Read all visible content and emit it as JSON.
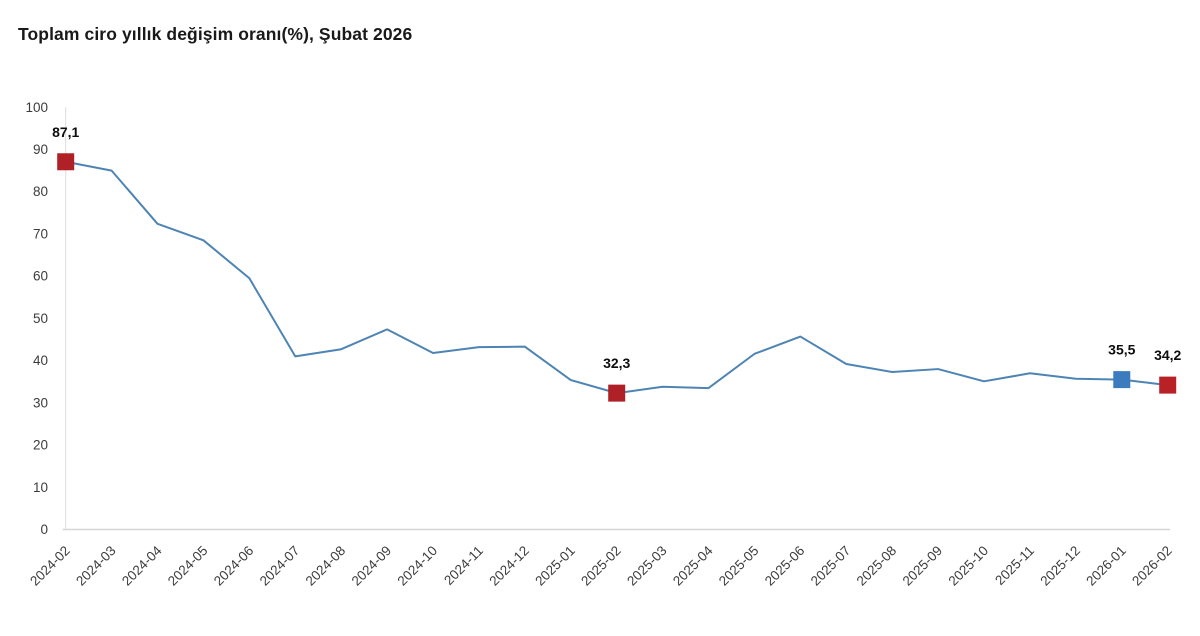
{
  "title": "Toplam ciro yıllık değişim oranı(%), Şubat 2026",
  "chart_data": {
    "type": "line",
    "title": "Toplam ciro yıllık değişim oranı(%), Şubat 2026",
    "xlabel": "",
    "ylabel": "",
    "ylim": [
      0,
      100
    ],
    "yticks": [
      0,
      10,
      20,
      30,
      40,
      50,
      60,
      70,
      80,
      90,
      100
    ],
    "grid": "single vertical gridline at first category only",
    "legend": "none",
    "x": [
      "2024-02",
      "2024-03",
      "2024-04",
      "2024-05",
      "2024-06",
      "2024-07",
      "2024-08",
      "2024-09",
      "2024-10",
      "2024-11",
      "2024-12",
      "2025-01",
      "2025-02",
      "2025-03",
      "2025-04",
      "2025-05",
      "2025-06",
      "2025-07",
      "2025-08",
      "2025-09",
      "2025-10",
      "2025-11",
      "2025-12",
      "2026-01",
      "2026-02"
    ],
    "series": [
      {
        "name": "Toplam ciro yıllık değişim oranı (%)",
        "values": [
          87.1,
          85.0,
          72.4,
          68.5,
          59.5,
          41.0,
          42.7,
          47.4,
          41.8,
          43.2,
          43.3,
          35.4,
          32.3,
          33.8,
          33.5,
          41.6,
          45.7,
          39.2,
          37.3,
          38.0,
          35.1,
          37.0,
          35.7,
          35.5,
          34.2
        ]
      }
    ],
    "annotations": [
      {
        "x": "2024-02",
        "value": 87.1,
        "label": "87,1",
        "marker": "square",
        "marker_color": "#b02127"
      },
      {
        "x": "2025-02",
        "value": 32.3,
        "label": "32,3",
        "marker": "square",
        "marker_color": "#b02127"
      },
      {
        "x": "2026-01",
        "value": 35.5,
        "label": "35,5",
        "marker": "square",
        "marker_color": "#3a7cbe"
      },
      {
        "x": "2026-02",
        "value": 34.2,
        "label": "34,2",
        "marker": "square",
        "marker_color": "#b82126"
      }
    ],
    "colors": {
      "line": "#4e84b3",
      "axis_line": "#d6d6d6",
      "gridline": "#dedede",
      "tick_label": "#3d3d3d",
      "data_label": "#0d0d0d",
      "title": "#191919",
      "background": "#ffffff"
    }
  }
}
